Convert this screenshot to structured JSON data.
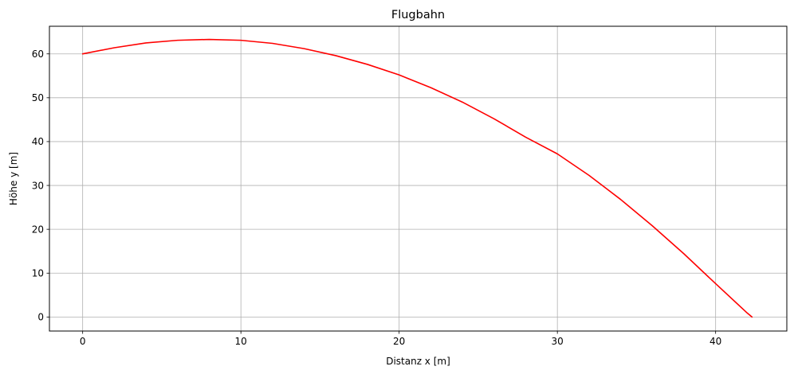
{
  "chart_data": {
    "type": "line",
    "title": "Flugbahn",
    "xlabel": "Distanz x [m]",
    "ylabel": "Höhe y [m]",
    "xlim": [
      -2.1,
      44.5
    ],
    "ylim": [
      -3.2,
      66.3
    ],
    "xticks": [
      0,
      10,
      20,
      30,
      40
    ],
    "yticks": [
      0,
      10,
      20,
      30,
      40,
      50,
      60
    ],
    "xtick_labels": [
      "0",
      "10",
      "20",
      "30",
      "40"
    ],
    "ytick_labels": [
      "0",
      "10",
      "20",
      "30",
      "40",
      "50",
      "60"
    ],
    "grid": true,
    "legend": null,
    "series": [
      {
        "color": "#ff0000",
        "x": [
          0,
          2.0,
          4.0,
          6.0,
          8.0,
          10.0,
          12.0,
          14.0,
          16.0,
          18.0,
          20.0,
          22.0,
          24.0,
          26.0,
          28.0,
          30.0,
          32.0,
          34.0,
          36.0,
          38.0,
          40.0,
          42.0,
          42.3
        ],
        "y": [
          60.0,
          61.4,
          62.5,
          63.1,
          63.3,
          63.1,
          62.4,
          61.2,
          59.6,
          57.6,
          55.2,
          52.3,
          49.0,
          45.2,
          41.0,
          37.2,
          32.3,
          26.8,
          20.8,
          14.4,
          7.6,
          0.9,
          0.0
        ]
      }
    ]
  }
}
